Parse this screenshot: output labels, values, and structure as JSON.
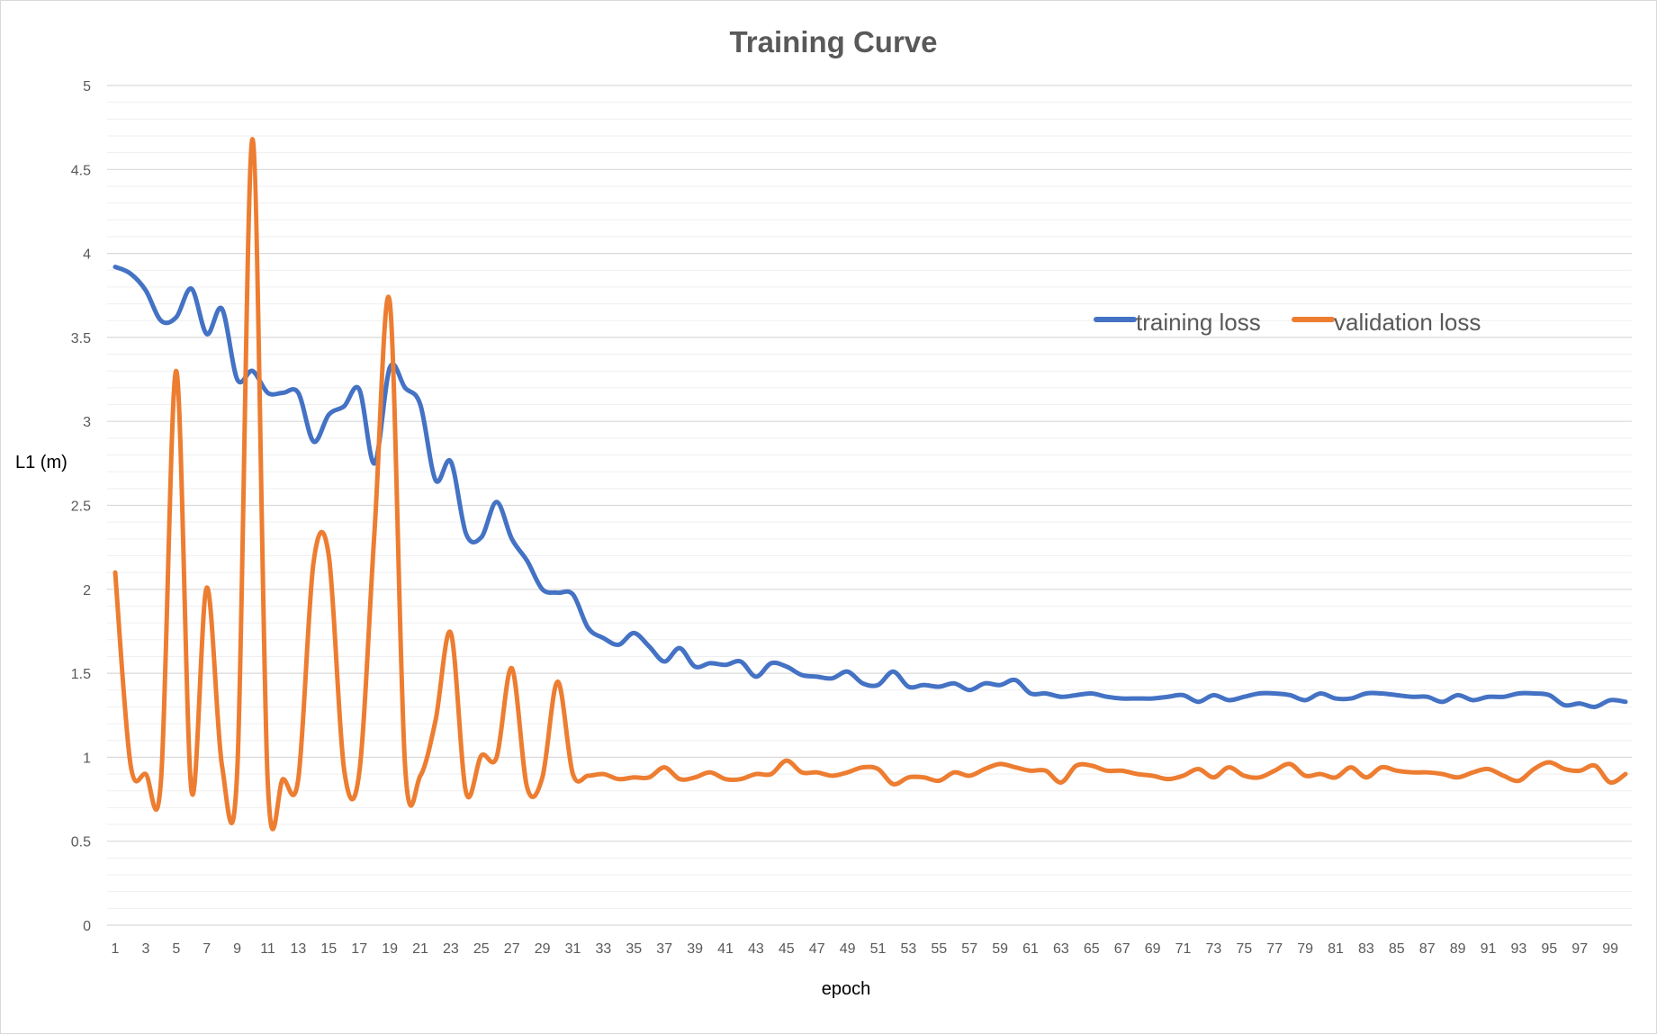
{
  "chart_data": {
    "type": "line",
    "title": "Training Curve",
    "xlabel": "epoch",
    "ylabel": "L1 (m)",
    "xlim": [
      1,
      100
    ],
    "ylim": [
      0,
      5
    ],
    "yticks": [
      "0",
      "0.5",
      "1",
      "1.5",
      "2",
      "2.5",
      "3",
      "3.5",
      "4",
      "4.5",
      "5"
    ],
    "y_major_step": 0.5,
    "y_minor_step": 0.1,
    "x_tick_labels_every": 2,
    "grid": "major and minor horizontal",
    "legend_position": "upper-right inside plot",
    "x": [
      1,
      2,
      3,
      4,
      5,
      6,
      7,
      8,
      9,
      10,
      11,
      12,
      13,
      14,
      15,
      16,
      17,
      18,
      19,
      20,
      21,
      22,
      23,
      24,
      25,
      26,
      27,
      28,
      29,
      30,
      31,
      32,
      33,
      34,
      35,
      36,
      37,
      38,
      39,
      40,
      41,
      42,
      43,
      44,
      45,
      46,
      47,
      48,
      49,
      50,
      51,
      52,
      53,
      54,
      55,
      56,
      57,
      58,
      59,
      60,
      61,
      62,
      63,
      64,
      65,
      66,
      67,
      68,
      69,
      70,
      71,
      72,
      73,
      74,
      75,
      76,
      77,
      78,
      79,
      80,
      81,
      82,
      83,
      84,
      85,
      86,
      87,
      88,
      89,
      90,
      91,
      92,
      93,
      94,
      95,
      96,
      97,
      98,
      99,
      100
    ],
    "series": [
      {
        "name": "training loss",
        "color": "#4472C4",
        "values": [
          3.92,
          3.88,
          3.78,
          3.6,
          3.62,
          3.79,
          3.52,
          3.67,
          3.25,
          3.3,
          3.17,
          3.17,
          3.17,
          2.88,
          3.04,
          3.09,
          3.19,
          2.75,
          3.32,
          3.2,
          3.1,
          2.65,
          2.76,
          2.33,
          2.31,
          2.52,
          2.3,
          2.17,
          2.0,
          1.98,
          1.97,
          1.77,
          1.71,
          1.67,
          1.74,
          1.66,
          1.57,
          1.65,
          1.54,
          1.56,
          1.55,
          1.57,
          1.48,
          1.56,
          1.54,
          1.49,
          1.48,
          1.47,
          1.51,
          1.44,
          1.43,
          1.51,
          1.42,
          1.43,
          1.42,
          1.44,
          1.4,
          1.44,
          1.43,
          1.46,
          1.38,
          1.38,
          1.36,
          1.37,
          1.38,
          1.36,
          1.35,
          1.35,
          1.35,
          1.36,
          1.37,
          1.33,
          1.37,
          1.34,
          1.36,
          1.38,
          1.38,
          1.37,
          1.34,
          1.38,
          1.35,
          1.35,
          1.38,
          1.38,
          1.37,
          1.36,
          1.36,
          1.33,
          1.37,
          1.34,
          1.36,
          1.36,
          1.38,
          1.38,
          1.37,
          1.31,
          1.32,
          1.3,
          1.34,
          1.33
        ]
      },
      {
        "name": "validation loss",
        "color": "#ED7D31",
        "values": [
          2.1,
          0.96,
          0.9,
          0.86,
          3.3,
          0.8,
          2.01,
          0.95,
          0.92,
          4.68,
          0.85,
          0.87,
          0.87,
          2.16,
          2.2,
          0.93,
          0.91,
          2.35,
          3.71,
          0.95,
          0.89,
          1.22,
          1.74,
          0.79,
          1.01,
          1.0,
          1.53,
          0.82,
          0.88,
          1.45,
          0.9,
          0.89,
          0.9,
          0.87,
          0.88,
          0.88,
          0.94,
          0.87,
          0.88,
          0.91,
          0.87,
          0.87,
          0.9,
          0.9,
          0.98,
          0.91,
          0.91,
          0.89,
          0.91,
          0.94,
          0.93,
          0.84,
          0.88,
          0.88,
          0.86,
          0.91,
          0.89,
          0.93,
          0.96,
          0.94,
          0.92,
          0.92,
          0.85,
          0.95,
          0.95,
          0.92,
          0.92,
          0.9,
          0.89,
          0.87,
          0.89,
          0.93,
          0.88,
          0.94,
          0.89,
          0.88,
          0.92,
          0.96,
          0.89,
          0.9,
          0.88,
          0.94,
          0.88,
          0.94,
          0.92,
          0.91,
          0.91,
          0.9,
          0.88,
          0.91,
          0.93,
          0.89,
          0.86,
          0.93,
          0.97,
          0.93,
          0.92,
          0.95,
          0.85,
          0.9
        ]
      }
    ]
  }
}
